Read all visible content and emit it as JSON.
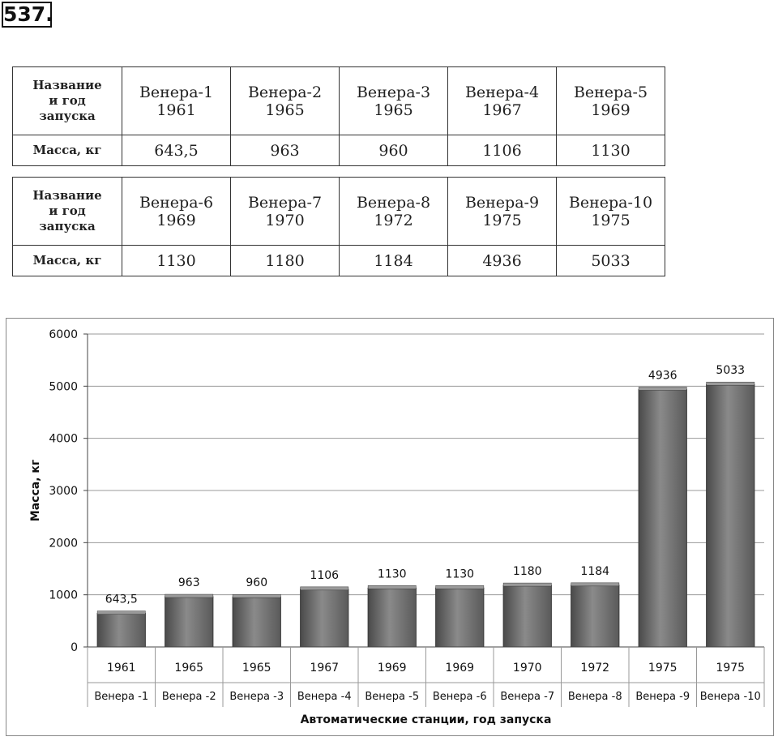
{
  "problem_number": "537.",
  "tables": [
    {
      "header_lines": [
        "Название",
        "и год",
        "запуска"
      ],
      "mass_label": "Масса, кг",
      "stations": [
        {
          "name": "Венера-1",
          "year": "1961",
          "mass": "643,5"
        },
        {
          "name": "Венера-2",
          "year": "1965",
          "mass": "963"
        },
        {
          "name": "Венера-3",
          "year": "1965",
          "mass": "960"
        },
        {
          "name": "Венера-4",
          "year": "1967",
          "mass": "1106"
        },
        {
          "name": "Венера-5",
          "year": "1969",
          "mass": "1130"
        }
      ]
    },
    {
      "header_lines": [
        "Название",
        "и год",
        "запуска"
      ],
      "mass_label": "Масса, кг",
      "stations": [
        {
          "name": "Венера-6",
          "year": "1969",
          "mass": "1130"
        },
        {
          "name": "Венера-7",
          "year": "1970",
          "mass": "1180"
        },
        {
          "name": "Венера-8",
          "year": "1972",
          "mass": "1184"
        },
        {
          "name": "Венера-9",
          "year": "1975",
          "mass": "4936"
        },
        {
          "name": "Венера-10",
          "year": "1975",
          "mass": "5033"
        }
      ]
    }
  ],
  "chart_data": {
    "type": "bar",
    "categories": [
      "Венера -1",
      "Венера -2",
      "Венера -3",
      "Венера -4",
      "Венера -5",
      "Венера -6",
      "Венера -7",
      "Венера -8",
      "Венера -9",
      "Венера -10"
    ],
    "years": [
      "1961",
      "1965",
      "1965",
      "1967",
      "1969",
      "1969",
      "1970",
      "1972",
      "1975",
      "1975"
    ],
    "values": [
      643.5,
      963,
      960,
      1106,
      1130,
      1130,
      1180,
      1184,
      4936,
      5033
    ],
    "data_labels": [
      "643,5",
      "963",
      "960",
      "1106",
      "1130",
      "1130",
      "1180",
      "1184",
      "4936",
      "5033"
    ],
    "ylabel": "Масса, кг",
    "xlabel": "Автоматические  станции,  год запуска",
    "ylim": [
      0,
      6000
    ],
    "yticks": [
      0,
      1000,
      2000,
      3000,
      4000,
      5000,
      6000
    ],
    "grid": true,
    "legend": "none",
    "bar_color": "#6e6e6e"
  }
}
